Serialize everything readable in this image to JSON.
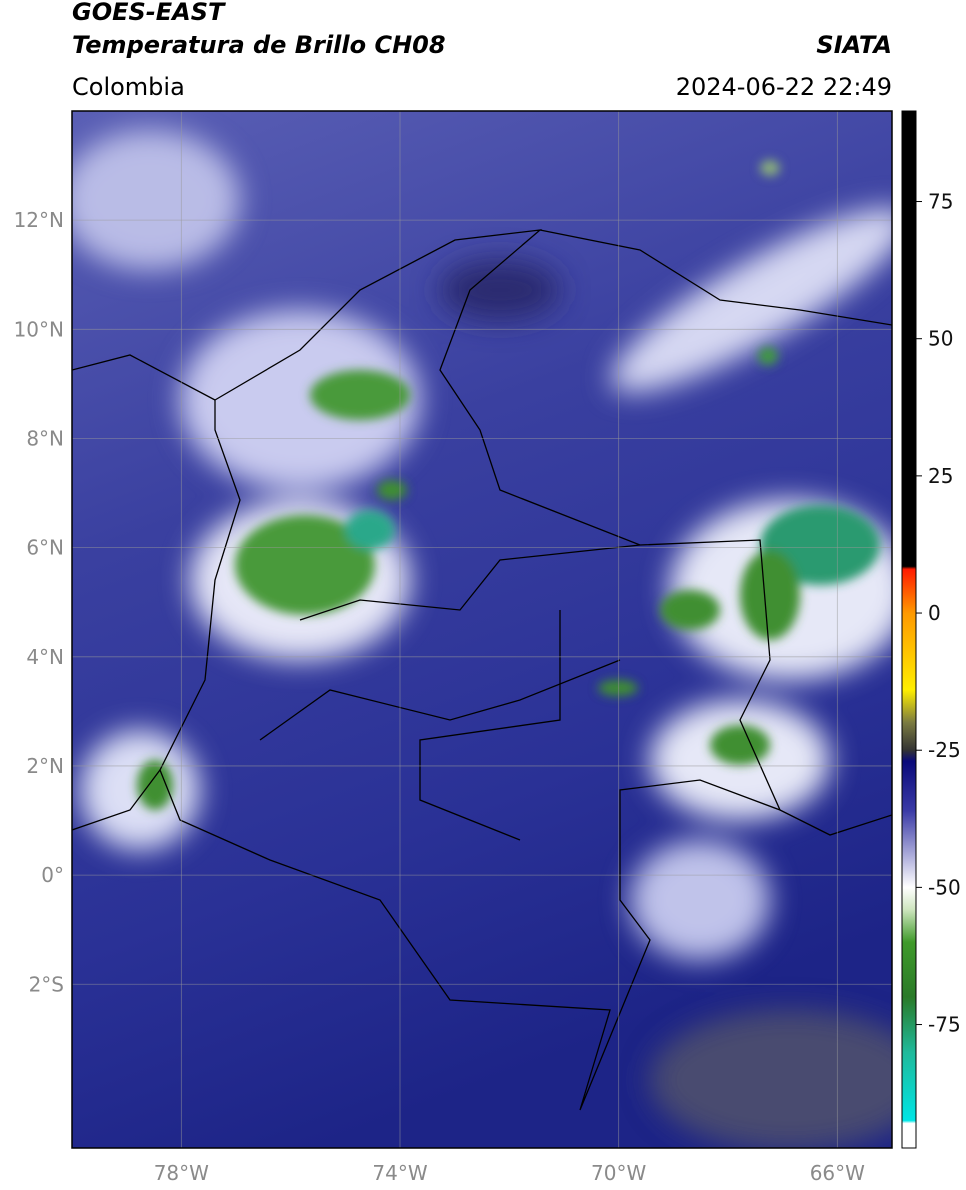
{
  "header": {
    "title_line1": "GOES-EAST",
    "title_line2": "Temperatura de Brillo CH08",
    "region": "Colombia",
    "source": "SIATA",
    "timestamp": "2024-06-22 22:49"
  },
  "map": {
    "lonlim": [
      -80,
      -65
    ],
    "latlim": [
      -5,
      14
    ],
    "lat_ticks": [
      {
        "value": 12,
        "label": "12°N"
      },
      {
        "value": 10,
        "label": "10°N"
      },
      {
        "value": 8,
        "label": "8°N"
      },
      {
        "value": 6,
        "label": "6°N"
      },
      {
        "value": 4,
        "label": "4°N"
      },
      {
        "value": 2,
        "label": "2°N"
      },
      {
        "value": 0,
        "label": "0°"
      },
      {
        "value": -2,
        "label": "2°S"
      }
    ],
    "lon_ticks": [
      {
        "value": -78,
        "label": "78°W"
      },
      {
        "value": -74,
        "label": "74°W"
      },
      {
        "value": -70,
        "label": "70°W"
      },
      {
        "value": -66,
        "label": "66°W"
      }
    ]
  },
  "colorbar": {
    "range": [
      -97.5,
      91.5
    ],
    "ticks": [
      75,
      50,
      25,
      0,
      -25,
      -50,
      -75
    ],
    "stops": [
      {
        "value": 91.5,
        "color": "#000000"
      },
      {
        "value": 8.5,
        "color": "#000000"
      },
      {
        "value": 8,
        "color": "#ff1a00"
      },
      {
        "value": 0,
        "color": "#ff9900"
      },
      {
        "value": -14,
        "color": "#ffee00"
      },
      {
        "value": -20,
        "color": "#7a7a40"
      },
      {
        "value": -25,
        "color": "#333333"
      },
      {
        "value": -27,
        "color": "#0a0a7a"
      },
      {
        "value": -36,
        "color": "#3a3aa6"
      },
      {
        "value": -45,
        "color": "#b8b8e0"
      },
      {
        "value": -50,
        "color": "#ffffff"
      },
      {
        "value": -54,
        "color": "#cfe6c0"
      },
      {
        "value": -60,
        "color": "#3f9a2a"
      },
      {
        "value": -70,
        "color": "#2a7a28"
      },
      {
        "value": -80,
        "color": "#1fb99a"
      },
      {
        "value": -92.5,
        "color": "#00e5e5"
      },
      {
        "value": -93,
        "color": "#ffffff"
      },
      {
        "value": -97.5,
        "color": "#ffffff"
      }
    ]
  }
}
